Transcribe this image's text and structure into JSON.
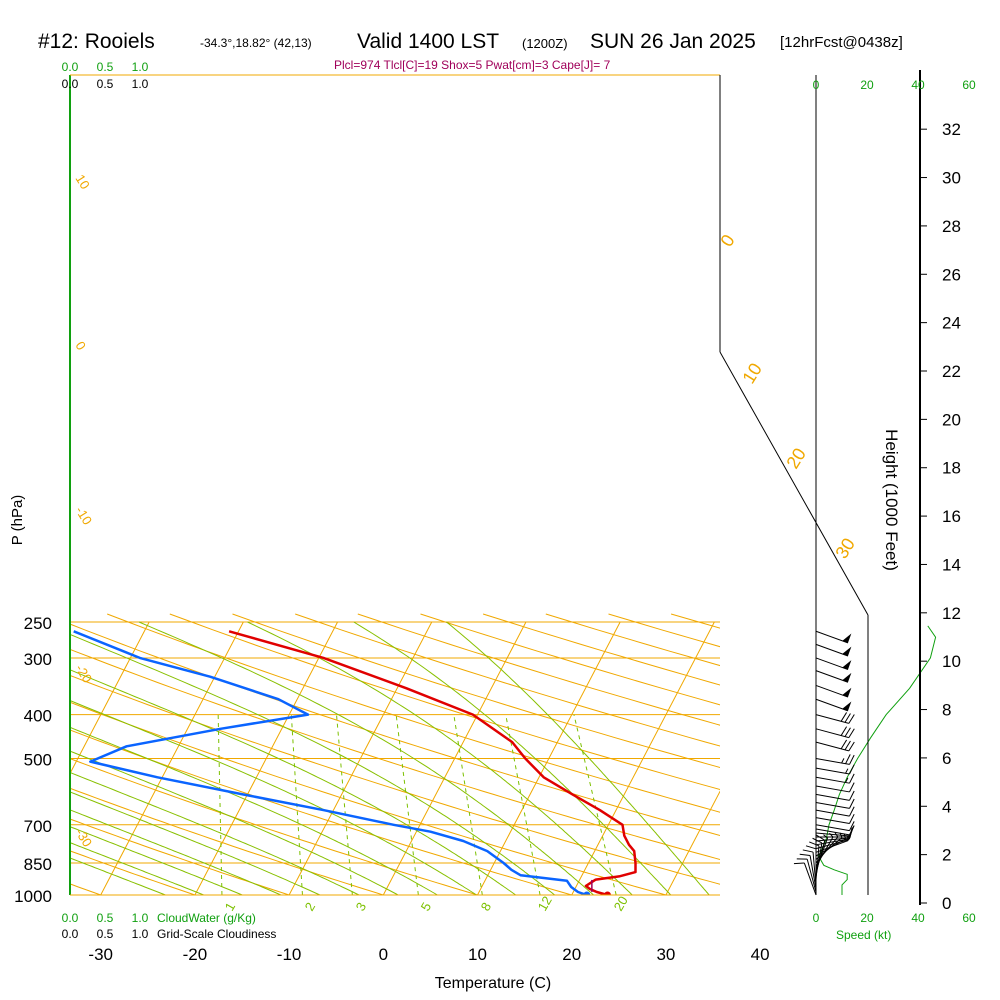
{
  "header": {
    "station": "#12: Rooiels",
    "coords": "-34.3°,18.82° (42,13)",
    "valid": "Valid 1400 LST",
    "utc": "(1200Z)",
    "date": "SUN 26 Jan 2025",
    "forecast": "[12hrFcst@0438z]",
    "indices": "Plcl=974 Tlcl[C]=19 Shox=5 Pwat[cm]=3 Cape[J]= 7"
  },
  "colors": {
    "temperature": "#e00000",
    "dewpoint": "#0a64ff",
    "isotherm": "#f0a800",
    "dry_adiabat": "#88c000",
    "moist_adiabat": "#a6d030",
    "mixing_ratio": "#7cc000",
    "scale_green": "#10a010",
    "indices": "#a0005a"
  },
  "cloud_scale": {
    "top_green": [
      "0.0",
      "0.5",
      "1.0"
    ],
    "top_black": [
      "0.0",
      "0.5",
      "1.0"
    ],
    "bottom_green": [
      "0.0",
      "0.5",
      "1.0"
    ],
    "bottom_green_label": "CloudWater (g/Kg)",
    "bottom_black": [
      "0.0",
      "0.5",
      "1.0"
    ],
    "bottom_black_label": "Grid-Scale Cloudiness"
  },
  "speed_scale": {
    "ticks": [
      "0",
      "20",
      "40",
      "60"
    ],
    "label": "Speed (kt)"
  },
  "chart_data": {
    "type": "line",
    "xlabel": "Temperature (C)",
    "ylabel": "P (hPa)",
    "y2label": "Height (1000 Feet)",
    "x_ticks": [
      "-30",
      "-20",
      "-10",
      "0",
      "10",
      "20",
      "30",
      "40"
    ],
    "pressure_ticks": [
      "1000",
      "850",
      "700",
      "500",
      "400",
      "300",
      "250"
    ],
    "height_ticks": [
      "0",
      "2",
      "4",
      "6",
      "8",
      "10",
      "12",
      "14",
      "16",
      "18",
      "20",
      "22",
      "24",
      "26",
      "28",
      "30",
      "32"
    ],
    "isotherm_labels": [
      "-30",
      "-20",
      "-10",
      "0",
      "10",
      "20",
      "30",
      "0",
      "10",
      "20",
      "30"
    ],
    "mixing_ratio_labels": [
      "1",
      "2",
      "3",
      "5",
      "8",
      "12",
      "20"
    ],
    "ylim": [
      1000,
      250
    ],
    "height_range_kft": [
      0,
      33
    ],
    "series": [
      {
        "name": "Temperature",
        "points": [
          {
            "t": 23.8,
            "p": 1000
          },
          {
            "t": 22.5,
            "p": 985
          },
          {
            "t": 21.6,
            "p": 970
          },
          {
            "t": 21.0,
            "p": 955
          },
          {
            "t": 21.7,
            "p": 925
          },
          {
            "t": 24.0,
            "p": 910
          },
          {
            "t": 25.5,
            "p": 890
          },
          {
            "t": 25.0,
            "p": 850
          },
          {
            "t": 24.2,
            "p": 800
          },
          {
            "t": 23.3,
            "p": 775
          },
          {
            "t": 22.3,
            "p": 740
          },
          {
            "t": 21.5,
            "p": 700
          },
          {
            "t": 18.3,
            "p": 650
          },
          {
            "t": 14.5,
            "p": 600
          },
          {
            "t": 10.5,
            "p": 550
          },
          {
            "t": 7.5,
            "p": 500
          },
          {
            "t": 5.2,
            "p": 460
          },
          {
            "t": -0.5,
            "p": 400
          },
          {
            "t": -9.0,
            "p": 350
          },
          {
            "t": -19.5,
            "p": 300
          },
          {
            "t": -31.0,
            "p": 262
          }
        ]
      },
      {
        "name": "Dewpoint",
        "points": [
          {
            "t": 21.6,
            "p": 1000
          },
          {
            "t": 20.5,
            "p": 985
          },
          {
            "t": 19.5,
            "p": 960
          },
          {
            "t": 18.7,
            "p": 930
          },
          {
            "t": 13.5,
            "p": 905
          },
          {
            "t": 12.2,
            "p": 880
          },
          {
            "t": 11.0,
            "p": 850
          },
          {
            "t": 8.6,
            "p": 800
          },
          {
            "t": 5.5,
            "p": 760
          },
          {
            "t": 1.5,
            "p": 725
          },
          {
            "t": -2.8,
            "p": 700
          },
          {
            "t": -11.0,
            "p": 650
          },
          {
            "t": -20.5,
            "p": 600
          },
          {
            "t": -30.5,
            "p": 550
          },
          {
            "t": -38.5,
            "p": 508
          },
          {
            "t": -35.5,
            "p": 470
          },
          {
            "t": -26.5,
            "p": 430
          },
          {
            "t": -18.0,
            "p": 400
          },
          {
            "t": -22.0,
            "p": 370
          },
          {
            "t": -30.5,
            "p": 330
          },
          {
            "t": -39.0,
            "p": 300
          },
          {
            "t": -47.5,
            "p": 262
          }
        ]
      }
    ],
    "wind_barbs": [
      {
        "p": 1000,
        "dir": 160,
        "speed": 10
      },
      {
        "p": 985,
        "dir": 165,
        "speed": 10
      },
      {
        "p": 970,
        "dir": 170,
        "speed": 10
      },
      {
        "p": 955,
        "dir": 175,
        "speed": 10
      },
      {
        "p": 940,
        "dir": 180,
        "speed": 10
      },
      {
        "p": 925,
        "dir": 185,
        "speed": 10
      },
      {
        "p": 910,
        "dir": 190,
        "speed": 10
      },
      {
        "p": 895,
        "dir": 195,
        "speed": 10
      },
      {
        "p": 880,
        "dir": 200,
        "speed": 5
      },
      {
        "p": 865,
        "dir": 210,
        "speed": 5
      },
      {
        "p": 850,
        "dir": 220,
        "speed": 5
      },
      {
        "p": 835,
        "dir": 230,
        "speed": 5
      },
      {
        "p": 820,
        "dir": 240,
        "speed": 5
      },
      {
        "p": 805,
        "dir": 250,
        "speed": 5
      },
      {
        "p": 790,
        "dir": 255,
        "speed": 5
      },
      {
        "p": 775,
        "dir": 260,
        "speed": 5
      },
      {
        "p": 760,
        "dir": 265,
        "speed": 10
      },
      {
        "p": 745,
        "dir": 270,
        "speed": 10
      },
      {
        "p": 730,
        "dir": 275,
        "speed": 10
      },
      {
        "p": 715,
        "dir": 280,
        "speed": 10
      },
      {
        "p": 700,
        "dir": 280,
        "speed": 10
      },
      {
        "p": 675,
        "dir": 280,
        "speed": 10
      },
      {
        "p": 650,
        "dir": 280,
        "speed": 10
      },
      {
        "p": 625,
        "dir": 280,
        "speed": 10
      },
      {
        "p": 600,
        "dir": 280,
        "speed": 10
      },
      {
        "p": 575,
        "dir": 280,
        "speed": 10
      },
      {
        "p": 550,
        "dir": 280,
        "speed": 15
      },
      {
        "p": 525,
        "dir": 280,
        "speed": 15
      },
      {
        "p": 500,
        "dir": 280,
        "speed": 25
      },
      {
        "p": 460,
        "dir": 285,
        "speed": 30
      },
      {
        "p": 430,
        "dir": 285,
        "speed": 30
      },
      {
        "p": 400,
        "dir": 285,
        "speed": 30
      },
      {
        "p": 370,
        "dir": 290,
        "speed": 50
      },
      {
        "p": 345,
        "dir": 290,
        "speed": 50
      },
      {
        "p": 320,
        "dir": 290,
        "speed": 50
      },
      {
        "p": 300,
        "dir": 290,
        "speed": 50
      },
      {
        "p": 280,
        "dir": 290,
        "speed": 50
      },
      {
        "p": 262,
        "dir": 290,
        "speed": 50
      }
    ],
    "speed_profile": [
      {
        "p": 1000,
        "kt": 10
      },
      {
        "p": 970,
        "kt": 10
      },
      {
        "p": 950,
        "kt": 10
      },
      {
        "p": 925,
        "kt": 12
      },
      {
        "p": 900,
        "kt": 12
      },
      {
        "p": 880,
        "kt": 7
      },
      {
        "p": 860,
        "kt": 3
      },
      {
        "p": 840,
        "kt": 2
      },
      {
        "p": 820,
        "kt": 1
      },
      {
        "p": 800,
        "kt": 2
      },
      {
        "p": 775,
        "kt": 3
      },
      {
        "p": 750,
        "kt": 4
      },
      {
        "p": 700,
        "kt": 5
      },
      {
        "p": 650,
        "kt": 7
      },
      {
        "p": 600,
        "kt": 9
      },
      {
        "p": 550,
        "kt": 12
      },
      {
        "p": 500,
        "kt": 16
      },
      {
        "p": 450,
        "kt": 21
      },
      {
        "p": 400,
        "kt": 27
      },
      {
        "p": 350,
        "kt": 36
      },
      {
        "p": 300,
        "kt": 44
      },
      {
        "p": 270,
        "kt": 46
      },
      {
        "p": 255,
        "kt": 43
      }
    ]
  }
}
